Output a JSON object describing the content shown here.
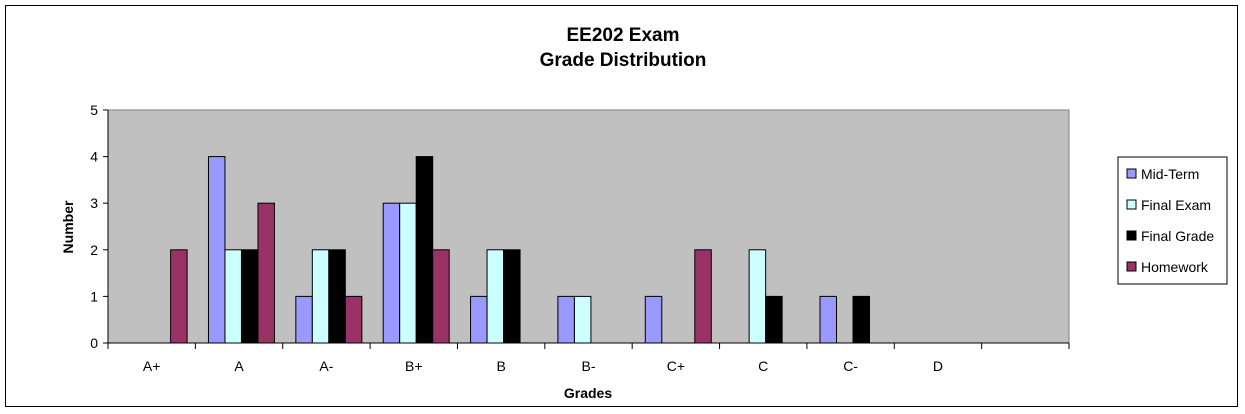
{
  "chart_data": {
    "type": "bar",
    "title_line1": "EE202 Exam",
    "title_line2": "Grade Distribution",
    "xlabel": "Grades",
    "ylabel": "Number",
    "ylim": [
      0,
      5
    ],
    "yticks": [
      0,
      1,
      2,
      3,
      4,
      5
    ],
    "grid": false,
    "plot_background": "#C0C0C0",
    "legend_position": "right",
    "categories": [
      "A+",
      "A",
      "A-",
      "B+",
      "B",
      "B-",
      "C+",
      "C",
      "C-",
      "D",
      ""
    ],
    "series": [
      {
        "name": "Mid-Term",
        "color": "#9999FF",
        "values": [
          0,
          4,
          1,
          3,
          1,
          1,
          1,
          0,
          1,
          0,
          0
        ]
      },
      {
        "name": "Final Exam",
        "color": "#CCFFFF",
        "values": [
          0,
          2,
          2,
          3,
          2,
          1,
          0,
          2,
          0,
          0,
          0
        ]
      },
      {
        "name": "Final Grade",
        "color": "#000000",
        "values": [
          0,
          2,
          2,
          4,
          2,
          0,
          0,
          1,
          1,
          0,
          0
        ]
      },
      {
        "name": "Homework",
        "color": "#993366",
        "values": [
          2,
          3,
          1,
          2,
          0,
          0,
          2,
          0,
          0,
          0,
          0
        ]
      }
    ]
  }
}
